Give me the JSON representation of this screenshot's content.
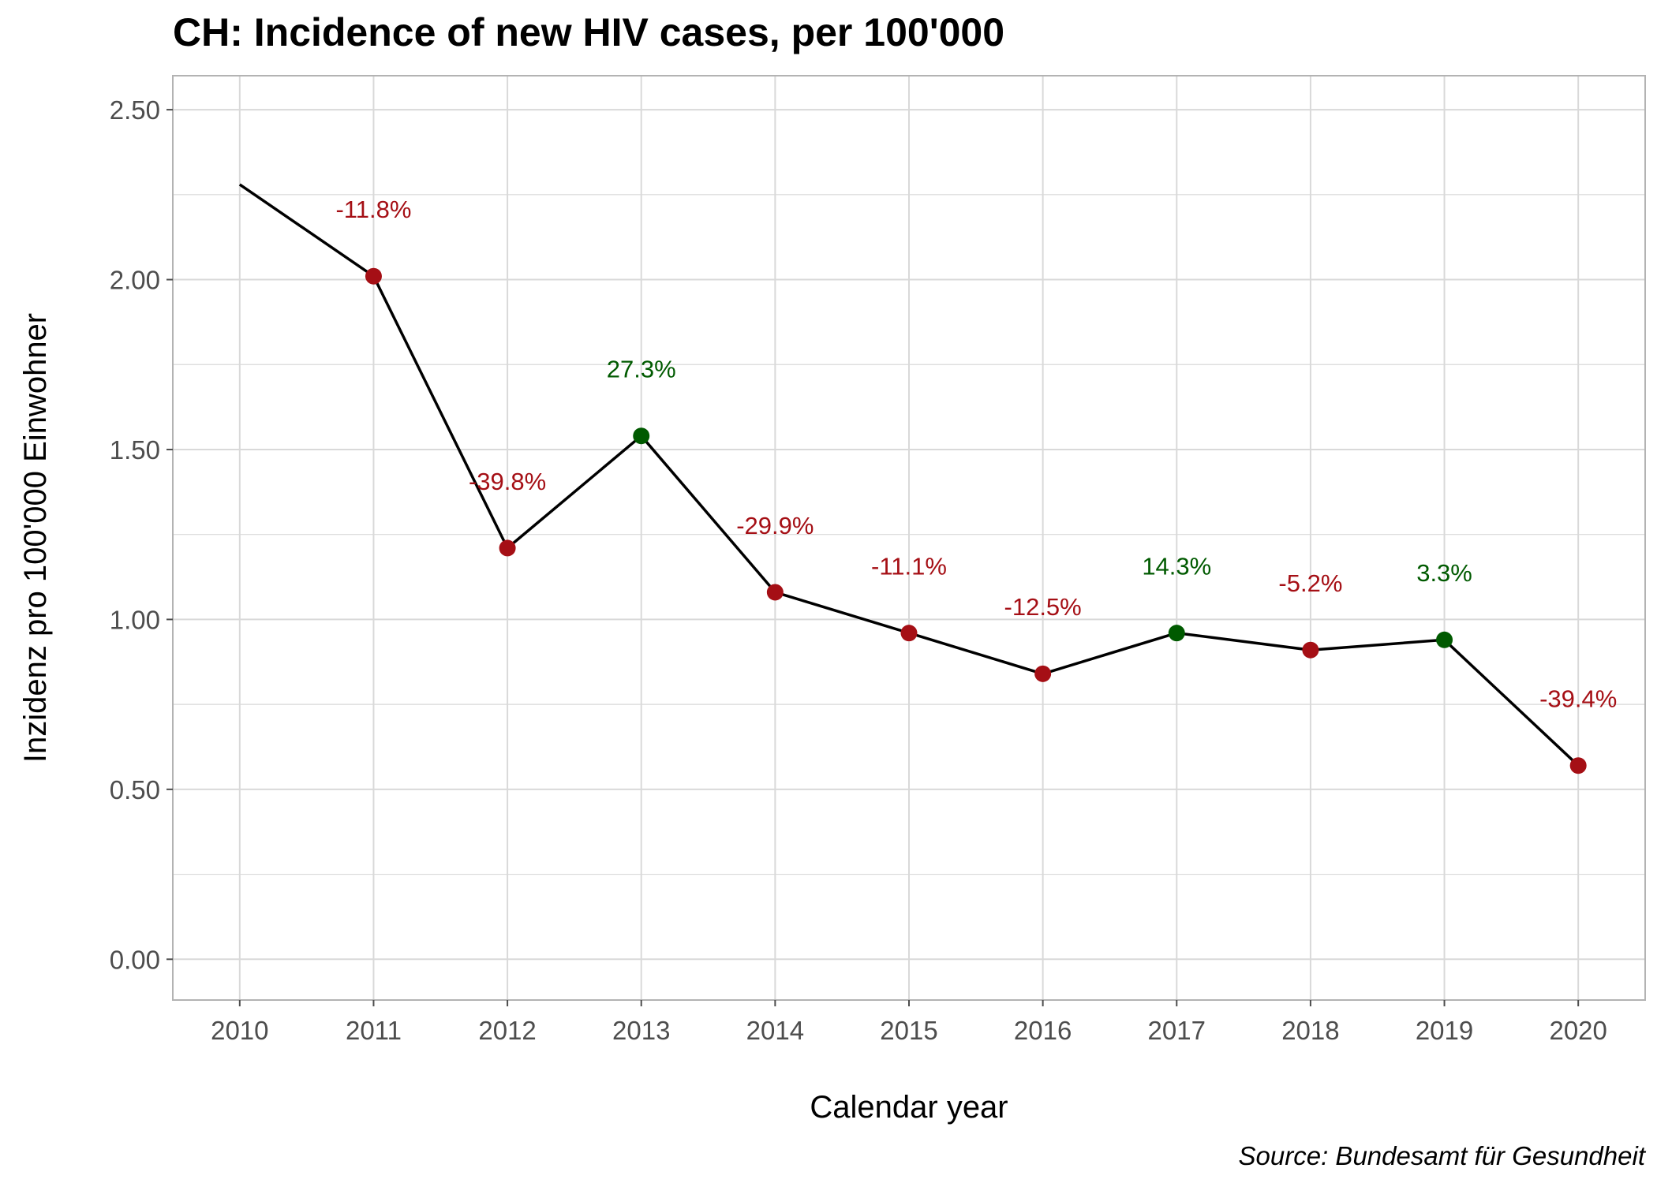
{
  "chart_data": {
    "type": "line",
    "title": "CH: Incidence of new HIV cases, per 100'000",
    "xlabel": "Calendar year",
    "ylabel": "Inzidenz pro 100'000 Einwohner",
    "caption": "Source: Bundesamt für Gesundheit",
    "x": [
      2010,
      2011,
      2012,
      2013,
      2014,
      2015,
      2016,
      2017,
      2018,
      2019,
      2020
    ],
    "x_tick_labels": [
      "2010",
      "2011",
      "2012",
      "2013",
      "2014",
      "2015",
      "2016",
      "2017",
      "2018",
      "2019",
      "2020"
    ],
    "series": [
      {
        "values": [
          2.28,
          2.01,
          1.21,
          1.54,
          1.08,
          0.96,
          0.84,
          0.96,
          0.91,
          0.94,
          0.57
        ]
      }
    ],
    "data_labels": [
      "",
      "-11.8%",
      "-39.8%",
      "27.3%",
      "-29.9%",
      "-11.1%",
      "-12.5%",
      "14.3%",
      "-5.2%",
      "3.3%",
      "-39.4%"
    ],
    "label_trend": [
      "",
      "down",
      "down",
      "up",
      "down",
      "down",
      "down",
      "up",
      "down",
      "up",
      "down"
    ],
    "y_ticks": [
      0,
      0.5,
      1,
      1.5,
      2,
      2.5
    ],
    "y_tick_labels": [
      "0.00",
      "0.50",
      "1.00",
      "1.50",
      "2.00",
      "2.50"
    ],
    "ylim": [
      -0.12,
      2.6
    ],
    "xlim": [
      2009.5,
      2020.5
    ],
    "grid": true,
    "legend": "none",
    "colors": {
      "line": "#000000",
      "down": "#a50f15",
      "up": "#005a00",
      "grid": "#d9d9d9",
      "panel_border": "#b3b3b3"
    }
  }
}
